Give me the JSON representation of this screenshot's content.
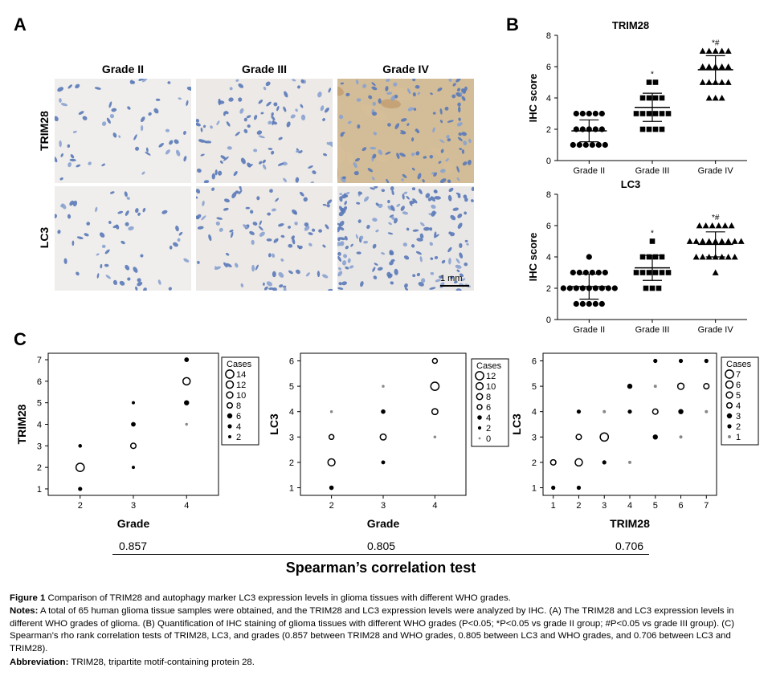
{
  "panels": {
    "A": {
      "letter": "A",
      "columns": [
        "Grade II",
        "Grade III",
        "Grade IV"
      ],
      "rows": [
        "TRIM28",
        "LC3"
      ],
      "scale_bar": "1 mm"
    },
    "B": {
      "letter": "B"
    },
    "C": {
      "letter": "C"
    }
  },
  "chart_data": [
    {
      "type": "scatter",
      "panel": "B-top",
      "title": "TRIM28",
      "ylabel": "IHC score",
      "xlabel": "",
      "ylim": [
        0,
        8
      ],
      "yticks": [
        0,
        2,
        4,
        6,
        8
      ],
      "categories": [
        "Grade II",
        "Grade III",
        "Grade IV"
      ],
      "groups": [
        {
          "name": "Grade II",
          "marker": "circle",
          "mean": 1.9,
          "sd": 0.7,
          "values": [
            1,
            1,
            1,
            1,
            1,
            1,
            2,
            2,
            2,
            2,
            2,
            3,
            3,
            3,
            3,
            3
          ],
          "annotation": ""
        },
        {
          "name": "Grade III",
          "marker": "square",
          "mean": 3.4,
          "sd": 0.9,
          "values": [
            2,
            2,
            2,
            2,
            3,
            3,
            3,
            3,
            3,
            3,
            4,
            4,
            4,
            4,
            5,
            5
          ],
          "annotation": "*"
        },
        {
          "name": "Grade IV",
          "marker": "triangle",
          "mean": 5.8,
          "sd": 0.9,
          "values": [
            4,
            4,
            4,
            5,
            5,
            5,
            5,
            5,
            6,
            6,
            6,
            6,
            6,
            7,
            7,
            7,
            7,
            7
          ],
          "annotation": "*#"
        }
      ]
    },
    {
      "type": "scatter",
      "panel": "B-bottom",
      "title": "LC3",
      "ylabel": "IHC score",
      "xlabel": "",
      "ylim": [
        0,
        8
      ],
      "yticks": [
        0,
        2,
        4,
        6,
        8
      ],
      "categories": [
        "Grade II",
        "Grade III",
        "Grade IV"
      ],
      "groups": [
        {
          "name": "Grade II",
          "marker": "circle",
          "mean": 2.1,
          "sd": 0.8,
          "values": [
            1,
            1,
            1,
            1,
            1,
            2,
            2,
            2,
            2,
            2,
            2,
            2,
            2,
            2,
            3,
            3,
            3,
            3,
            3,
            3,
            4
          ],
          "annotation": ""
        },
        {
          "name": "Grade III",
          "marker": "square",
          "mean": 3.3,
          "sd": 0.8,
          "values": [
            2,
            2,
            2,
            3,
            3,
            3,
            3,
            3,
            3,
            4,
            4,
            4,
            4,
            5
          ],
          "annotation": "*"
        },
        {
          "name": "Grade IV",
          "marker": "triangle",
          "mean": 4.8,
          "sd": 0.8,
          "values": [
            3,
            4,
            4,
            4,
            4,
            4,
            4,
            4,
            5,
            5,
            5,
            5,
            5,
            5,
            5,
            5,
            5,
            6,
            6,
            6,
            6,
            6,
            6
          ],
          "annotation": "*#"
        }
      ]
    },
    {
      "type": "scatter",
      "panel": "C-1",
      "xlabel": "Grade",
      "ylabel": "TRIM28",
      "xlim": [
        1.4,
        4.6
      ],
      "ylim": [
        0.7,
        7.3
      ],
      "xticks": [
        2,
        3,
        4
      ],
      "yticks": [
        1,
        2,
        3,
        4,
        5,
        6,
        7
      ],
      "legend_title": "Cases",
      "legend": [
        "14",
        "12",
        "10",
        "8",
        "6",
        "4",
        "2"
      ],
      "points": [
        {
          "x": 2,
          "y": 1,
          "n": 4
        },
        {
          "x": 2,
          "y": 2,
          "n": 14
        },
        {
          "x": 2,
          "y": 3,
          "n": 3
        },
        {
          "x": 3,
          "y": 2,
          "n": 2
        },
        {
          "x": 3,
          "y": 3,
          "n": 8
        },
        {
          "x": 3,
          "y": 4,
          "n": 5
        },
        {
          "x": 3,
          "y": 5,
          "n": 2
        },
        {
          "x": 4,
          "y": 4,
          "n": 1
        },
        {
          "x": 4,
          "y": 5,
          "n": 6
        },
        {
          "x": 4,
          "y": 6,
          "n": 12
        },
        {
          "x": 4,
          "y": 7,
          "n": 5
        }
      ],
      "spearman": "0.857"
    },
    {
      "type": "scatter",
      "panel": "C-2",
      "xlabel": "Grade",
      "ylabel": "LC3",
      "xlim": [
        1.4,
        4.6
      ],
      "ylim": [
        0.7,
        6.3
      ],
      "xticks": [
        2,
        3,
        4
      ],
      "yticks": [
        1,
        2,
        3,
        4,
        5,
        6
      ],
      "legend_title": "Cases",
      "legend": [
        "12",
        "10",
        "8",
        "6",
        "4",
        "2",
        "0"
      ],
      "points": [
        {
          "x": 2,
          "y": 1,
          "n": 4
        },
        {
          "x": 2,
          "y": 2,
          "n": 10
        },
        {
          "x": 2,
          "y": 3,
          "n": 6
        },
        {
          "x": 2,
          "y": 4,
          "n": 1
        },
        {
          "x": 3,
          "y": 2,
          "n": 3
        },
        {
          "x": 3,
          "y": 3,
          "n": 8
        },
        {
          "x": 3,
          "y": 4,
          "n": 4
        },
        {
          "x": 3,
          "y": 5,
          "n": 1
        },
        {
          "x": 4,
          "y": 3,
          "n": 1
        },
        {
          "x": 4,
          "y": 4,
          "n": 8
        },
        {
          "x": 4,
          "y": 5,
          "n": 12
        },
        {
          "x": 4,
          "y": 6,
          "n": 6
        }
      ],
      "spearman": "0.805"
    },
    {
      "type": "scatter",
      "panel": "C-3",
      "xlabel": "TRIM28",
      "ylabel": "LC3",
      "xlim": [
        0.6,
        7.4
      ],
      "ylim": [
        0.7,
        6.3
      ],
      "xticks": [
        1,
        2,
        3,
        4,
        5,
        6,
        7
      ],
      "yticks": [
        1,
        2,
        3,
        4,
        5,
        6
      ],
      "legend_title": "Cases",
      "legend": [
        "7",
        "6",
        "5",
        "4",
        "3",
        "2",
        "1"
      ],
      "points": [
        {
          "x": 1,
          "y": 1,
          "n": 2
        },
        {
          "x": 1,
          "y": 2,
          "n": 4
        },
        {
          "x": 2,
          "y": 1,
          "n": 2
        },
        {
          "x": 2,
          "y": 2,
          "n": 6
        },
        {
          "x": 2,
          "y": 3,
          "n": 4
        },
        {
          "x": 2,
          "y": 4,
          "n": 2
        },
        {
          "x": 3,
          "y": 2,
          "n": 2
        },
        {
          "x": 3,
          "y": 3,
          "n": 7
        },
        {
          "x": 3,
          "y": 4,
          "n": 1
        },
        {
          "x": 4,
          "y": 2,
          "n": 1
        },
        {
          "x": 4,
          "y": 4,
          "n": 2
        },
        {
          "x": 4,
          "y": 5,
          "n": 3
        },
        {
          "x": 5,
          "y": 3,
          "n": 3
        },
        {
          "x": 5,
          "y": 4,
          "n": 4
        },
        {
          "x": 5,
          "y": 5,
          "n": 1
        },
        {
          "x": 5,
          "y": 6,
          "n": 2
        },
        {
          "x": 6,
          "y": 3,
          "n": 1
        },
        {
          "x": 6,
          "y": 4,
          "n": 3
        },
        {
          "x": 6,
          "y": 5,
          "n": 5
        },
        {
          "x": 6,
          "y": 6,
          "n": 2
        },
        {
          "x": 7,
          "y": 4,
          "n": 1
        },
        {
          "x": 7,
          "y": 5,
          "n": 4
        },
        {
          "x": 7,
          "y": 6,
          "n": 2
        }
      ],
      "spearman": "0.706"
    }
  ],
  "spearman_title": "Spearman’s correlation test",
  "caption": {
    "figure_label": "Figure 1",
    "figure_text": " Comparison of TRIM28 and autophagy marker LC3 expression levels in glioma tissues with different WHO grades.",
    "notes_label": "Notes:",
    "notes_text": " A total of 65 human glioma tissue samples were obtained, and the TRIM28 and LC3 expression levels were analyzed by IHC. (A) The TRIM28 and LC3 expression levels in different WHO grades of glioma. (B) Quantification of IHC staining of glioma tissues with different WHO grades (P<0.05; *P<0.05 vs grade II group; #P<0.05 vs grade III group). (C) Spearman’s rho rank correlation tests of TRIM28, LC3, and grades (0.857 between TRIM28 and WHO grades, 0.805 between LC3 and WHO grades, and 0.706 between LC3 and TRIM28).",
    "abbrev_label": "Abbreviation:",
    "abbrev_text": " TRIM28, tripartite motif-containing protein 28."
  },
  "colors": {
    "tissue_bg_light": "#eeeceb",
    "tissue_bg_brown": "#c9ac86",
    "nucleus_blue": "#5a79b8",
    "marker": "#000000"
  }
}
